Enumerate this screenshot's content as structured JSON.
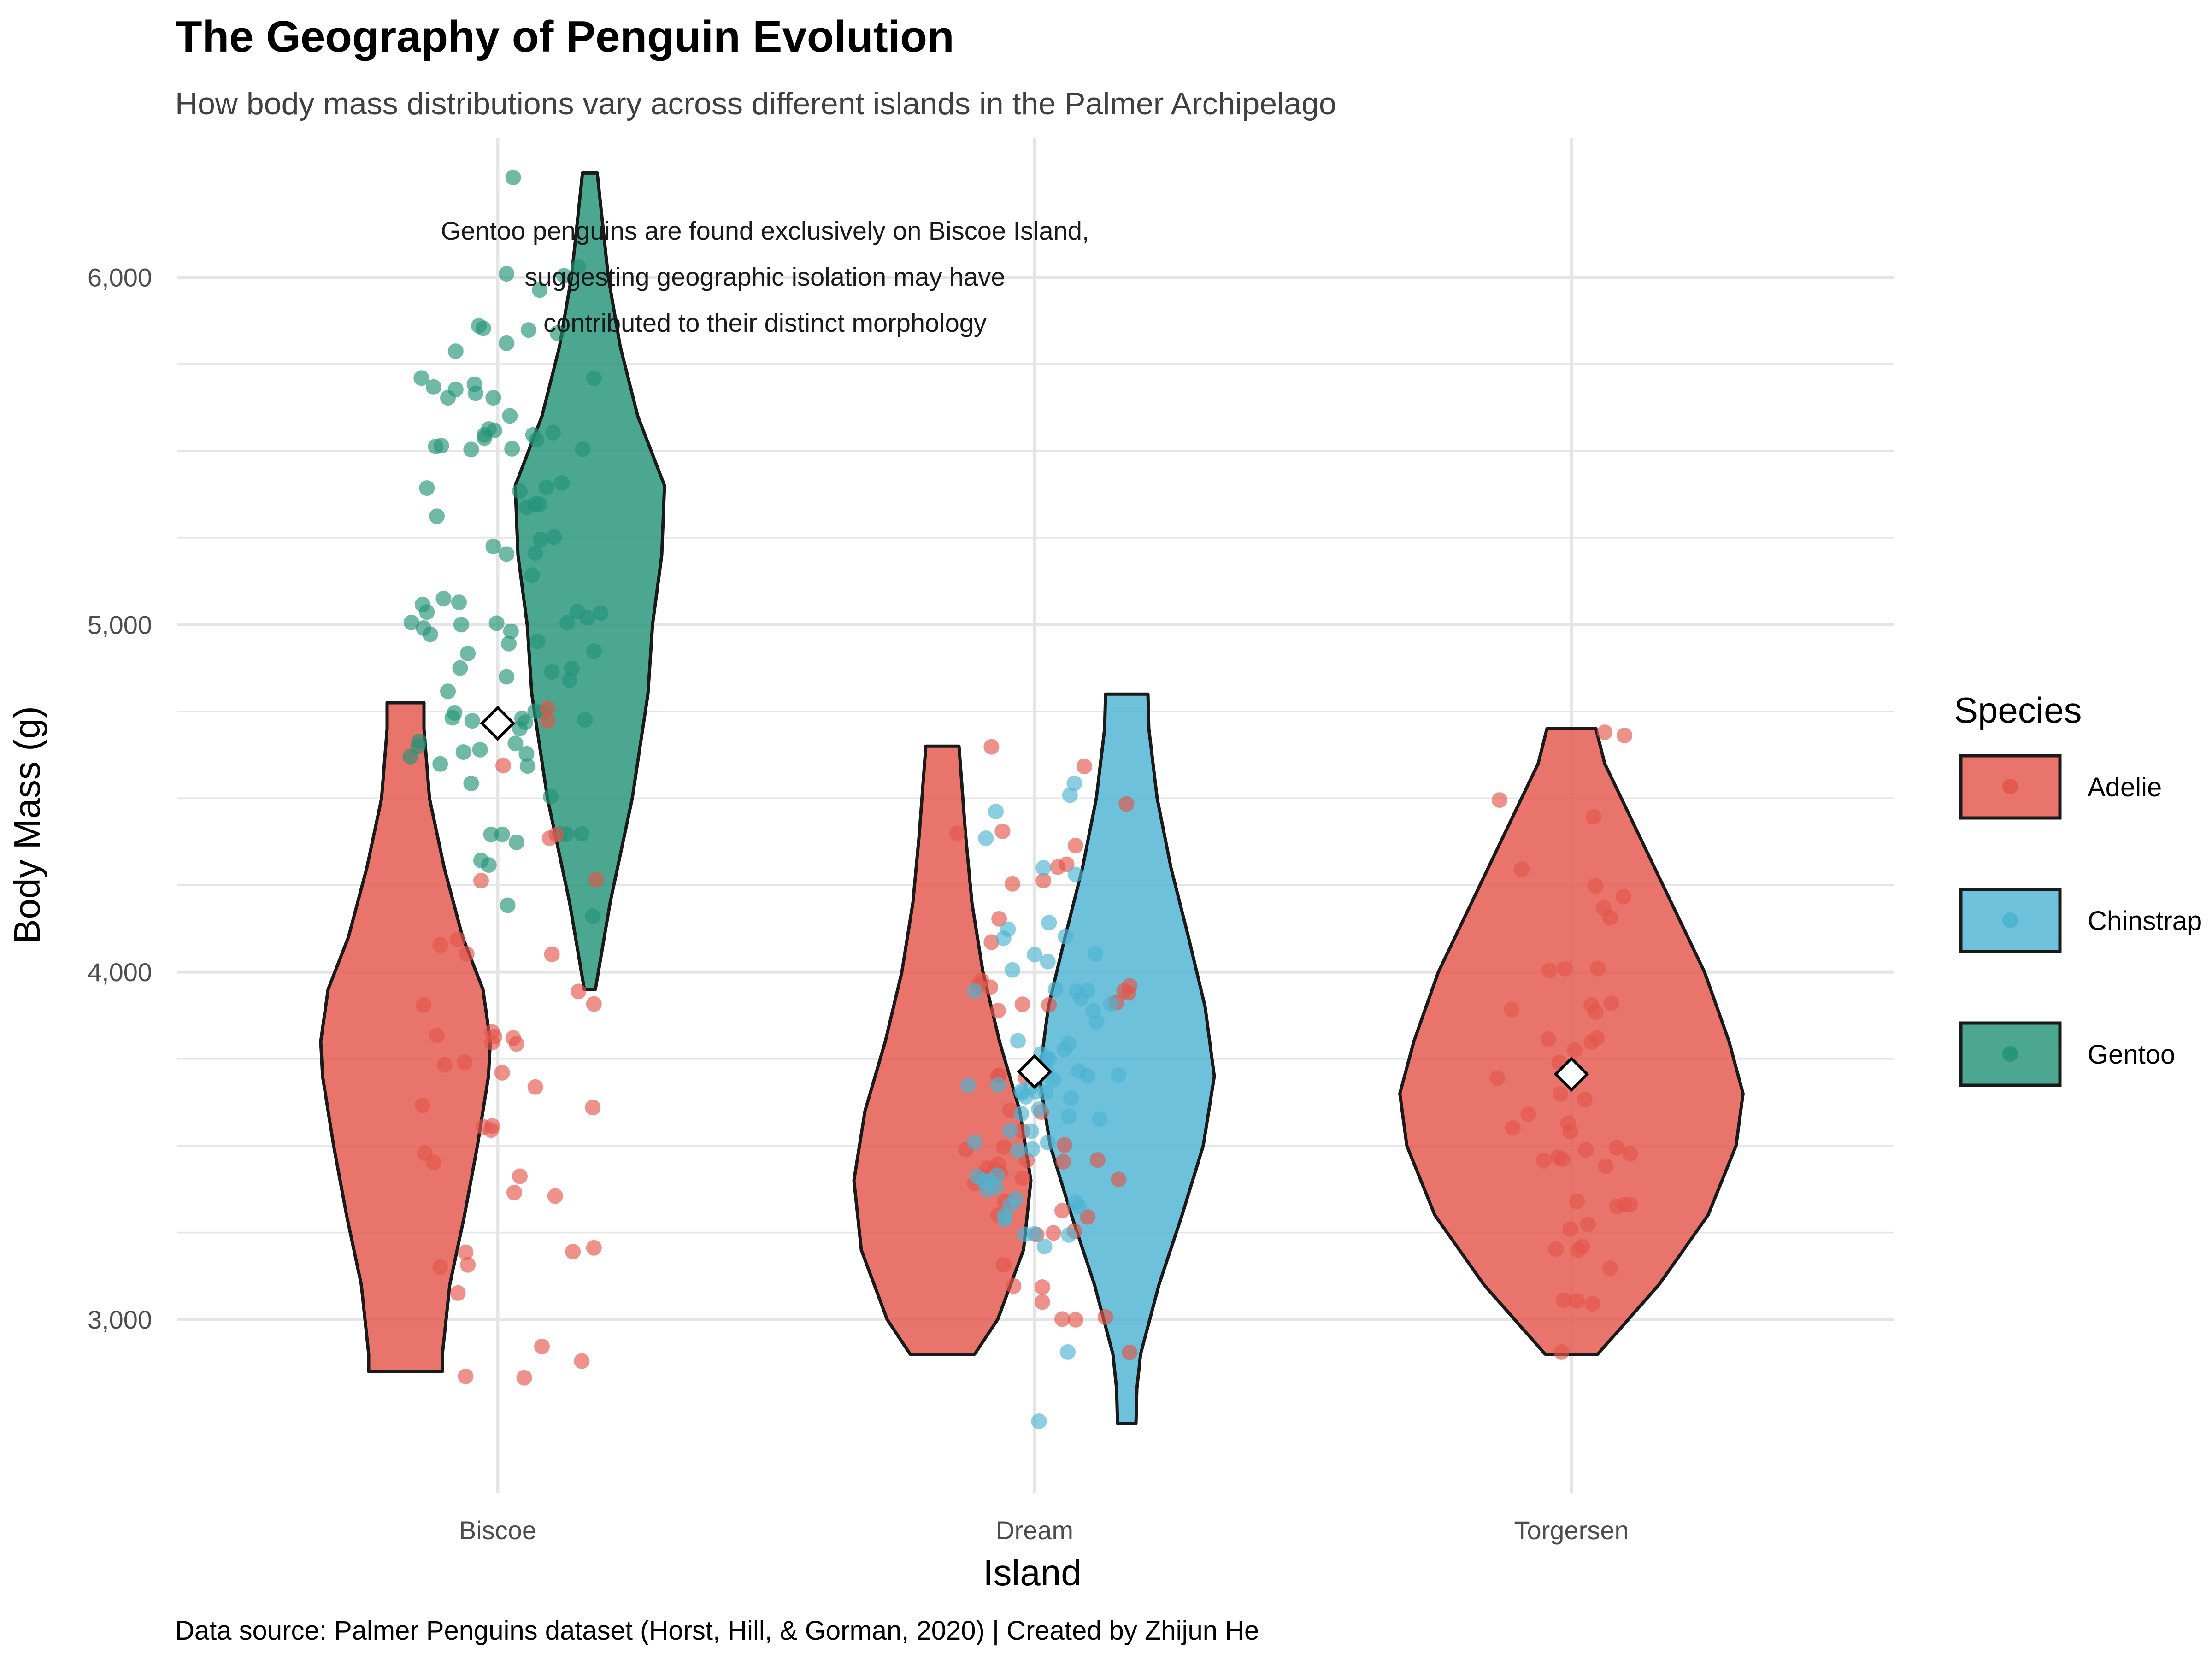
{
  "colors": {
    "Adelie": "#E3564C",
    "Chinstrap": "#4DB3D2",
    "Gentoo": "#239478",
    "outline": "#1a1a1a",
    "grid": "#e5e5e5"
  },
  "chart_data": {
    "type": "violin",
    "title": "The Geography of Penguin Evolution",
    "subtitle": "How body mass distributions vary across different islands in the Palmer Archipelago",
    "xlabel": "Island",
    "ylabel": "Body Mass (g)",
    "caption": "Data source: Palmer Penguins dataset (Horst, Hill, & Gorman, 2020) | Created by Zhijun He",
    "annotation": [
      "Gentoo penguins are found exclusively on Biscoe Island,",
      "suggesting geographic isolation may have",
      "contributed to their distinct morphology"
    ],
    "categories": [
      "Biscoe",
      "Dream",
      "Torgersen"
    ],
    "ylim": [
      2500,
      6400
    ],
    "yticks": [
      3000,
      4000,
      5000,
      6000
    ],
    "ytick_labels": [
      "3,000",
      "4,000",
      "5,000",
      "6,000"
    ],
    "legend": {
      "title": "Species",
      "entries": [
        "Adelie",
        "Chinstrap",
        "Gentoo"
      ],
      "position": "right"
    },
    "island_means": [
      {
        "island": "Biscoe",
        "value": 4716
      },
      {
        "island": "Dream",
        "value": 3713
      },
      {
        "island": "Torgersen",
        "value": 3706
      }
    ],
    "violins": [
      {
        "island": "Biscoe",
        "species": "Adelie",
        "side": "left",
        "profile": [
          [
            2850,
            0.4
          ],
          [
            2900,
            0.4
          ],
          [
            3100,
            0.48
          ],
          [
            3300,
            0.64
          ],
          [
            3500,
            0.78
          ],
          [
            3700,
            0.9
          ],
          [
            3800,
            0.92
          ],
          [
            3950,
            0.84
          ],
          [
            4100,
            0.62
          ],
          [
            4300,
            0.42
          ],
          [
            4500,
            0.26
          ],
          [
            4700,
            0.2
          ],
          [
            4775,
            0.2
          ]
        ]
      },
      {
        "island": "Biscoe",
        "species": "Gentoo",
        "side": "right",
        "profile": [
          [
            3950,
            0.06
          ],
          [
            4200,
            0.22
          ],
          [
            4500,
            0.46
          ],
          [
            4800,
            0.63
          ],
          [
            5000,
            0.68
          ],
          [
            5200,
            0.78
          ],
          [
            5400,
            0.81
          ],
          [
            5600,
            0.52
          ],
          [
            5800,
            0.33
          ],
          [
            6000,
            0.2
          ],
          [
            6200,
            0.12
          ],
          [
            6300,
            0.08
          ]
        ]
      },
      {
        "island": "Dream",
        "species": "Adelie",
        "side": "left",
        "profile": [
          [
            2900,
            0.35
          ],
          [
            3000,
            0.6
          ],
          [
            3200,
            0.88
          ],
          [
            3400,
            0.96
          ],
          [
            3600,
            0.84
          ],
          [
            3800,
            0.62
          ],
          [
            4000,
            0.44
          ],
          [
            4200,
            0.32
          ],
          [
            4400,
            0.25
          ],
          [
            4650,
            0.18
          ]
        ]
      },
      {
        "island": "Dream",
        "species": "Chinstrap",
        "side": "right",
        "profile": [
          [
            2700,
            0.1
          ],
          [
            2800,
            0.11
          ],
          [
            2900,
            0.15
          ],
          [
            3100,
            0.35
          ],
          [
            3300,
            0.6
          ],
          [
            3500,
            0.83
          ],
          [
            3700,
            0.95
          ],
          [
            3900,
            0.85
          ],
          [
            4100,
            0.67
          ],
          [
            4300,
            0.48
          ],
          [
            4500,
            0.33
          ],
          [
            4700,
            0.24
          ],
          [
            4800,
            0.23
          ]
        ]
      },
      {
        "island": "Torgersen",
        "species": "Adelie",
        "side": "both",
        "profile": [
          [
            2900,
            0.15
          ],
          [
            3100,
            0.5
          ],
          [
            3300,
            0.78
          ],
          [
            3500,
            0.94
          ],
          [
            3650,
            0.98
          ],
          [
            3800,
            0.9
          ],
          [
            4000,
            0.76
          ],
          [
            4200,
            0.57
          ],
          [
            4400,
            0.38
          ],
          [
            4600,
            0.19
          ],
          [
            4700,
            0.14
          ]
        ]
      }
    ],
    "points": [
      {
        "island": "Biscoe",
        "species": "Gentoo",
        "offsets": [
          0.04,
          -0.71,
          -0.67,
          0.2,
          0.93,
          0.17,
          0.39,
          0.65,
          0.08,
          -0.64,
          -0.23,
          -0.33,
          0.81,
          0.6,
          -0.56,
          0.87,
          0.1,
          -0.45,
          -0.04,
          -0.61,
          -0.08,
          0.56,
          -0.52,
          -0.79,
          0.35,
          0.5,
          -0.12,
          0.73,
          0.08,
          0.16,
          0.34,
          0.13,
          0.58,
          0.2,
          0.54,
          -0.35,
          0.72,
          -0.12,
          -0.38,
          0.14,
          -0.2,
          -0.27,
          0.62,
          -0.78,
          0.26,
          -0.24,
          -0.45,
          0.48,
          -0.69,
          -0.51,
          -0.38,
          -0.17,
          0.22,
          0.11,
          0.67,
          0.34,
          -0.08,
          0.79,
          -0.01,
          0.08,
          -0.55,
          -0.49,
          0.44,
          0.25,
          -0.41,
          0.12,
          -0.03,
          0.27,
          0.41,
          0.09,
          0.32,
          0.28,
          0.86,
          -0.16,
          0.08,
          -0.39,
          0.38,
          0.49,
          0.87,
          0.26,
          -0.34,
          0.34,
          -0.58,
          0.36,
          -0.64,
          0.51,
          -0.31,
          0.63,
          -0.04,
          -0.06,
          -0.72,
          -0.21,
          0.31,
          0.76,
          -0.24,
          -0.68,
          -0.13,
          0.38,
          -0.15,
          0.77
        ],
        "values": [
          4396,
          4664,
          4990,
          5384,
          5033,
          4373,
          5245,
          4840,
          5203,
          5393,
          4723,
          5000,
          5020,
          6004,
          5513,
          5709,
          4945,
          4808,
          5653,
          4972,
          4308,
          4397,
          4599,
          4620,
          5532,
          5553,
          5537,
          6030,
          5810,
          4658,
          5347,
          5506,
          5408,
          4701,
          5839,
          5064,
          5038,
          5546,
          5787,
          6287,
          5666,
          4917,
          4397,
          5006,
          5337,
          4543,
          5653,
          4505,
          5710,
          5515,
          5677,
          5860,
          4730,
          5601,
          4874,
          4751,
          5563,
          4726,
          5004,
          4850,
          5312,
          5075,
          5395,
          4719,
          4732,
          4981,
          5559,
          4593,
          4748,
          4192,
          5546,
          5848,
          4161,
          4640,
          6010,
          4746,
          5963,
          4864,
          4924,
          4628,
          4875,
          5206,
          5684,
          4951,
          5036,
          5252,
          4633,
          5005,
          5225,
          4396,
          4650,
          5692,
          5142,
          4398,
          5504,
          5058,
          5853,
          5347,
          4321,
          5505
        ]
      },
      {
        "island": "Biscoe",
        "species": "Adelie",
        "offsets": [
          -0.15,
          0.87,
          0.87,
          -0.66,
          0.2,
          -0.36,
          -0.67,
          -0.03,
          0.86,
          0.4,
          -0.06,
          -0.52,
          0.49,
          0.45,
          -0.3,
          0.17,
          -0.05,
          -0.55,
          0.73,
          -0.58,
          -0.13,
          0.24,
          0.68,
          0.76,
          0.05,
          0.15,
          0.89,
          0.53,
          -0.27,
          -0.29,
          -0.28,
          0.45,
          -0.05,
          0.34,
          0.04,
          0.14,
          -0.52,
          -0.05,
          -0.29,
          -0.68,
          -0.48,
          -0.36,
          0.52,
          0.47
        ],
        "values": [
          4263,
          3206,
          3908,
          3479,
          3412,
          3076,
          3905,
          3814,
          3610,
          2922,
          3545,
          3150,
          4051,
          4723,
          3740,
          3793,
          3557,
          3817,
          3944,
          3452,
          3554,
          2832,
          3195,
          2880,
          4594,
          3365,
          4266,
          4396,
          3157,
          3193,
          4052,
          4759,
          3827,
          3669,
          3710,
          3810,
          4078,
          3797,
          2836,
          3616,
          3733,
          4093,
          3355,
          4385
        ]
      },
      {
        "island": "Dream",
        "species": "Adelie",
        "offsets": [
          0.07,
          -0.32,
          -0.07,
          -0.54,
          0.13,
          0.17,
          0.29,
          0.76,
          -0.39,
          -0.27,
          -0.31,
          0.37,
          -0.28,
          0.08,
          0.45,
          0.86,
          -0.7,
          -0.33,
          -0.36,
          0.21,
          0.27,
          0.07,
          -0.11,
          0.85,
          0.83,
          0.02,
          -0.33,
          -0.32,
          -0.11,
          0.26,
          -0.22,
          0.36,
          -0.2,
          -0.33,
          -0.4,
          0.64,
          -0.11,
          -0.29,
          0.06,
          -0.33,
          0.25,
          -0.51,
          -0.19,
          -0.39,
          0.25,
          -0.48,
          0.74,
          -0.08,
          -0.46,
          0.81,
          -0.62,
          -0.43,
          0.57,
          0.86,
          0.37,
          -0.28,
          0.48
        ],
        "values": [
          3050,
          3703,
          3458,
          3391,
          3905,
          3249,
          4310,
          3403,
          4648,
          3340,
          3423,
          4364,
          3496,
          4263,
          4592,
          3960,
          4399,
          3447,
          3430,
          4302,
          3502,
          3093,
          3407,
          3940,
          4484,
          3244,
          3889,
          4153,
          3542,
          3454,
          3602,
          3254,
          4254,
          3301,
          3956,
          3007,
          3907,
          4405,
          3597,
          3700,
          3001,
          3961,
          3096,
          4086,
          3313,
          3976,
          3912,
          3695,
          3411,
          3946,
          3489,
          3435,
          3459,
          2905,
          2999,
          3158,
          3295
        ]
      },
      {
        "island": "Dream",
        "species": "Chinstrap",
        "offsets": [
          0.17,
          0.31,
          0.01,
          0.08,
          -0.22,
          -0.6,
          0.27,
          0.19,
          0.48,
          0.33,
          0.4,
          0.04,
          0.13,
          -0.46,
          0.31,
          -0.12,
          -0.09,
          0.04,
          0.1,
          0.37,
          -0.34,
          -0.27,
          -0.43,
          0.12,
          0.56,
          -0.22,
          -0.54,
          0.28,
          0.38,
          -0.2,
          -0.35,
          -0.4,
          0.0,
          -0.17,
          -0.03,
          -0.28,
          -0.15,
          -0.27,
          0.11,
          -0.33,
          -0.35,
          0.59,
          -0.12,
          -0.02,
          0.69,
          0.53,
          0.37,
          0.48,
          -0.11,
          -0.52,
          0.09,
          0.12,
          0.55,
          0.11,
          0.4,
          -0.15,
          -0.44,
          0.36,
          -0.08,
          0.0,
          0.31,
          0.76,
          0.42,
          -0.54,
          0.13,
          0.32,
          0.06,
          0.3,
          -0.24,
          -0.03
        ],
        "values": [
          3690,
          3793,
          3656,
          4300,
          3543,
          3674,
          3777,
          3950,
          3701,
          3637,
          3325,
          2707,
          3750,
          3399,
          3585,
          3592,
          3245,
          3605,
          3652,
          4281,
          3415,
          3287,
          3373,
          3509,
          3857,
          3329,
          3510,
          4102,
          3944,
          4006,
          3380,
          3399,
          4050,
          3347,
          3542,
          4097,
          3802,
          3300,
          3713,
          3675,
          4462,
          3577,
          3657,
          3490,
          3908,
          3888,
          3337,
          3946,
          3651,
          3411,
          3210,
          4030,
          4052,
          3752,
          3715,
          3486,
          4385,
          4543,
          3641,
          3246,
          3243,
          3703,
          3925,
          3946,
          4142,
          4509,
          3764,
          2906,
          4123,
          3669
        ]
      },
      {
        "island": "Torgersen",
        "species": "Adelie",
        "offsets": [
          0.1,
          -0.1,
          0.18,
          -0.12,
          -0.2,
          -0.54,
          0.13,
          -0.39,
          0.47,
          0.03,
          0.35,
          0.48,
          0.22,
          0.53,
          -0.01,
          -0.01,
          0.48,
          0.22,
          -0.11,
          -0.21,
          0.18,
          0.3,
          0.23,
          0.12,
          0.31,
          0.15,
          -0.53,
          0.2,
          0.05,
          0.36,
          -0.08,
          -0.06,
          0.24,
          -0.14,
          -0.65,
          0.05,
          -0.67,
          0.41,
          -0.03,
          -0.07,
          0.19,
          -0.45,
          0.35,
          -0.25,
          -0.09,
          0.29,
          0.41,
          0.53,
          0.06
        ],
        "values": [
          3210,
          3649,
          3798,
          3467,
          4005,
          3892,
          3488,
          3590,
          4217,
          3775,
          4156,
          3330,
          3885,
          3477,
          3260,
          3541,
          4681,
          4248,
          3739,
          3807,
          3905,
          4690,
          3810,
          3633,
          3441,
          3273,
          3551,
          4447,
          3053,
          3910,
          3461,
          4010,
          4010,
          3202,
          4495,
          3340,
          3694,
          3325,
          3565,
          3055,
          3045,
          4296,
          3147,
          3457,
          2906,
          4184,
          3494,
          3331,
          3200
        ]
      }
    ]
  }
}
